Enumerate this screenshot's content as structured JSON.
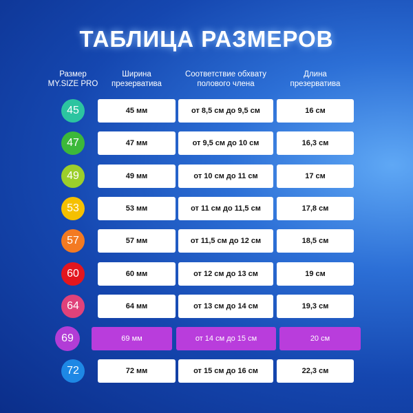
{
  "title": "ТАБЛИЦА РАЗМЕРОВ",
  "headers": [
    "Размер\nMY.SIZE PRO",
    "Ширина\nпрезерватива",
    "Соответствие обхвату\nполового члена",
    "Длина\nпрезерватива"
  ],
  "rows": [
    {
      "size": "45",
      "width": "45 мм",
      "girth": "от 8,5 см до 9,5 см",
      "length": "16 см",
      "color": "#2cc4a0"
    },
    {
      "size": "47",
      "width": "47 мм",
      "girth": "от 9,5 см до 10 см",
      "length": "16,3 см",
      "color": "#3cb83a"
    },
    {
      "size": "49",
      "width": "49 мм",
      "girth": "от 10 см до 11 см",
      "length": "17 см",
      "color": "#9ccf2b"
    },
    {
      "size": "53",
      "width": "53 мм",
      "girth": "от 11 см до 11,5 см",
      "length": "17,8 см",
      "color": "#f5c000"
    },
    {
      "size": "57",
      "width": "57 мм",
      "girth": "от 11,5 см до 12 см",
      "length": "18,5 см",
      "color": "#f37a22"
    },
    {
      "size": "60",
      "width": "60 мм",
      "girth": "от 12 см до 13 см",
      "length": "19 см",
      "color": "#e3161e"
    },
    {
      "size": "64",
      "width": "64 мм",
      "girth": "от 13 см до 14 см",
      "length": "19,3 см",
      "color": "#e0427a"
    },
    {
      "size": "69",
      "width": "69 мм",
      "girth": "от 14 см до 15 см",
      "length": "20 см",
      "color": "#b23dd6",
      "highlighted": true
    },
    {
      "size": "72",
      "width": "72 мм",
      "girth": "от 15 см до 16 см",
      "length": "22,3 см",
      "color": "#1e88e5"
    }
  ]
}
